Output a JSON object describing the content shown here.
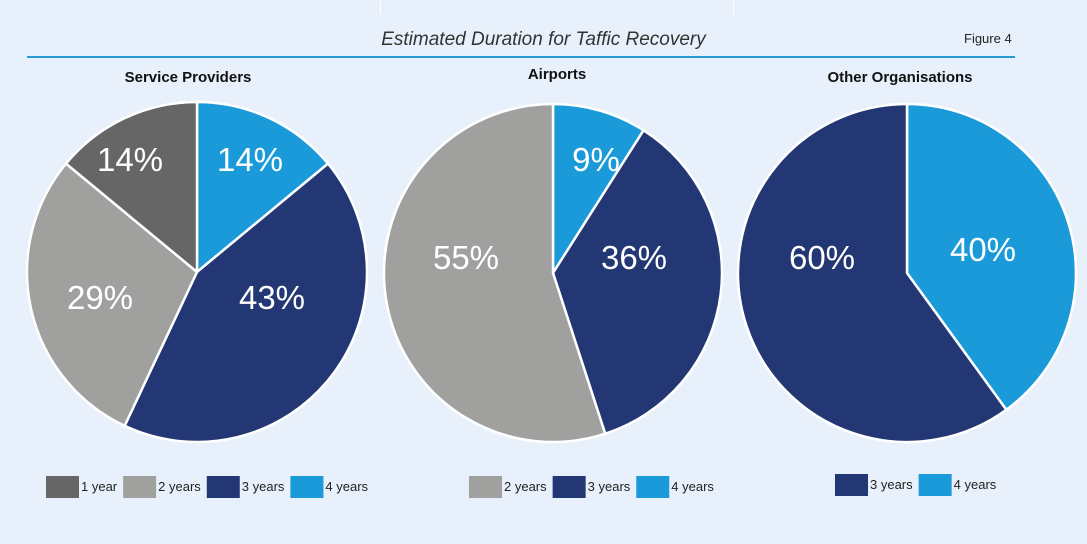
{
  "figure": {
    "title": "Estimated Duration for Taffic Recovery",
    "label": "Figure 4"
  },
  "colors": {
    "1 year": "#666666",
    "2 years": "#a0a09e",
    "3 years": "#223773",
    "4 years": "#1a9ad8",
    "background": "#e8f1fb",
    "title_rule": "#2a9bd6"
  },
  "chart_data": [
    {
      "type": "pie",
      "title": "Service Providers",
      "slices": [
        {
          "label": "4 years",
          "value": 14
        },
        {
          "label": "3 years",
          "value": 43
        },
        {
          "label": "2 years",
          "value": 29
        },
        {
          "label": "1 year",
          "value": 14
        }
      ],
      "value_labels": [
        "14%",
        "43%",
        "29%",
        "14%"
      ],
      "legend": [
        "1 year",
        "2 years",
        "3 years",
        "4 years"
      ],
      "legend_position": "bottom"
    },
    {
      "type": "pie",
      "title": "Airports",
      "slices": [
        {
          "label": "4 years",
          "value": 9
        },
        {
          "label": "3 years",
          "value": 36
        },
        {
          "label": "2 years",
          "value": 55
        }
      ],
      "value_labels": [
        "9%",
        "36%",
        "55%"
      ],
      "legend": [
        "2 years",
        "3 years",
        "4 years"
      ],
      "legend_position": "bottom"
    },
    {
      "type": "pie",
      "title": "Other Organisations",
      "slices": [
        {
          "label": "4 years",
          "value": 40
        },
        {
          "label": "3 years",
          "value": 60
        }
      ],
      "value_labels": [
        "40%",
        "60%"
      ],
      "legend": [
        "3 years",
        "4 years"
      ],
      "legend_position": "bottom"
    }
  ]
}
